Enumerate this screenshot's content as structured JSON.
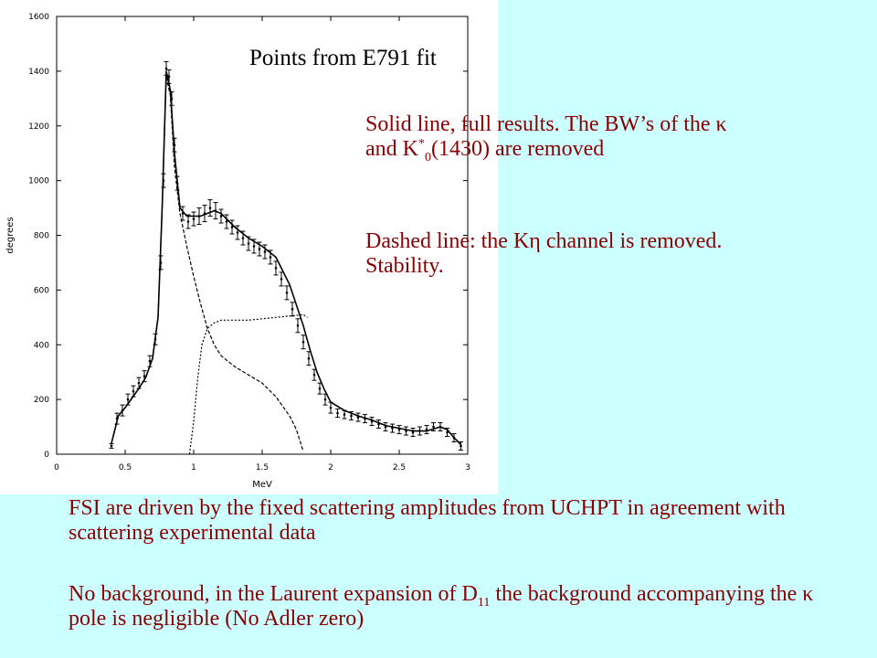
{
  "chart_data": {
    "type": "line",
    "xlabel": "MeV",
    "ylabel": "degrees",
    "xlim": [
      0,
      3
    ],
    "ylim": [
      0,
      1600
    ],
    "x_ticks": [
      "0",
      "0.5",
      "1",
      "1.5",
      "2",
      "2.5",
      "3"
    ],
    "y_ticks": [
      "0",
      "200",
      "400",
      "600",
      "800",
      "1000",
      "1200",
      "1400",
      "1600"
    ],
    "grid": false,
    "series": [
      {
        "style": "points-with-errorbars",
        "x": [
          0.4,
          0.44,
          0.48,
          0.52,
          0.56,
          0.6,
          0.64,
          0.68,
          0.72,
          0.76,
          0.78,
          0.8,
          0.82,
          0.84,
          0.86,
          0.88,
          0.92,
          0.96,
          1.0,
          1.04,
          1.08,
          1.12,
          1.16,
          1.2,
          1.24,
          1.28,
          1.32,
          1.36,
          1.4,
          1.44,
          1.48,
          1.52,
          1.56,
          1.6,
          1.64,
          1.68,
          1.72,
          1.76,
          1.8,
          1.84,
          1.88,
          1.92,
          1.96,
          2.0,
          2.05,
          2.1,
          2.15,
          2.2,
          2.25,
          2.3,
          2.35,
          2.4,
          2.45,
          2.5,
          2.55,
          2.6,
          2.65,
          2.7,
          2.75,
          2.8,
          2.85,
          2.9,
          2.95
        ],
        "y": [
          30,
          130,
          160,
          200,
          230,
          260,
          285,
          340,
          420,
          700,
          1000,
          1410,
          1380,
          1300,
          1130,
          990,
          880,
          850,
          860,
          870,
          880,
          900,
          890,
          870,
          850,
          830,
          810,
          790,
          770,
          760,
          750,
          740,
          720,
          680,
          640,
          590,
          530,
          470,
          410,
          350,
          290,
          240,
          200,
          170,
          150,
          145,
          140,
          135,
          130,
          120,
          110,
          100,
          95,
          90,
          85,
          80,
          85,
          90,
          100,
          100,
          80,
          60,
          30
        ],
        "err": [
          8,
          20,
          20,
          20,
          20,
          20,
          20,
          20,
          20,
          25,
          25,
          25,
          25,
          25,
          25,
          25,
          25,
          25,
          25,
          30,
          30,
          30,
          30,
          25,
          25,
          25,
          25,
          25,
          25,
          25,
          25,
          25,
          25,
          25,
          25,
          25,
          25,
          25,
          25,
          25,
          20,
          20,
          20,
          20,
          15,
          15,
          15,
          15,
          15,
          15,
          15,
          15,
          15,
          15,
          15,
          15,
          15,
          15,
          15,
          15,
          15,
          15,
          15
        ]
      },
      {
        "style": "solid",
        "x": [
          0.4,
          0.45,
          0.5,
          0.55,
          0.6,
          0.65,
          0.7,
          0.74,
          0.77,
          0.8,
          0.83,
          0.86,
          0.9,
          0.95,
          1.0,
          1.05,
          1.1,
          1.15,
          1.2,
          1.3,
          1.4,
          1.5,
          1.6,
          1.7,
          1.8,
          1.85,
          1.9,
          1.95,
          2.0,
          2.1,
          2.2,
          2.3,
          2.4,
          2.5,
          2.6,
          2.7,
          2.8,
          2.85,
          2.9,
          2.95
        ],
        "y": [
          40,
          140,
          170,
          205,
          240,
          280,
          350,
          500,
          900,
          1400,
          1330,
          1100,
          900,
          870,
          870,
          870,
          880,
          890,
          880,
          830,
          790,
          760,
          720,
          620,
          470,
          380,
          300,
          240,
          190,
          160,
          140,
          125,
          105,
          95,
          85,
          85,
          100,
          90,
          60,
          35
        ]
      },
      {
        "style": "dashed",
        "x": [
          0.4,
          0.45,
          0.5,
          0.55,
          0.6,
          0.65,
          0.7,
          0.74,
          0.77,
          0.8,
          0.83,
          0.86,
          0.9,
          0.95,
          1.0,
          1.05,
          1.1,
          1.15,
          1.2,
          1.3,
          1.4,
          1.5,
          1.6,
          1.7,
          1.75,
          1.8
        ],
        "y": [
          40,
          140,
          170,
          205,
          240,
          280,
          350,
          500,
          900,
          1380,
          1310,
          1050,
          880,
          760,
          650,
          550,
          460,
          400,
          360,
          320,
          290,
          260,
          210,
          140,
          90,
          10
        ]
      },
      {
        "style": "dotted",
        "x": [
          0.97,
          1.0,
          1.03,
          1.06,
          1.1,
          1.15,
          1.2,
          1.3,
          1.4,
          1.5,
          1.6,
          1.7,
          1.8,
          1.83
        ],
        "y": [
          0,
          120,
          280,
          400,
          460,
          480,
          490,
          490,
          490,
          495,
          500,
          505,
          510,
          500
        ]
      }
    ]
  },
  "texts": {
    "points_title": "Points from E791 fit",
    "solid_line": "Solid line, full results. The BW’s of the κ  and K",
    "solid_sup": "*",
    "solid_sub": "0",
    "solid_tail": "(1430) are removed",
    "dashed_line": "Dashed line: the Kη channel is removed.  Stability.",
    "fsi": "FSI are driven by the fixed scattering amplitudes from UCHPT in agreement with scattering experimental data",
    "bg_head": "No background, in the Laurent expansion of D",
    "bg_sub": "11",
    "bg_tail": " the background accompanying the κ pole is negligible (No Adler zero)"
  }
}
